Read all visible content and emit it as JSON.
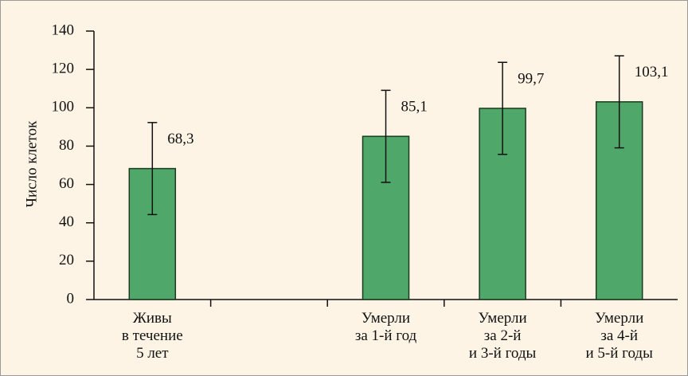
{
  "chart_data": {
    "type": "bar",
    "y_label": "Число клеток",
    "categories": [
      "Живы\nв течение\n5 лет",
      null,
      "Умерли\nза 1-й год",
      "Умерли\nза 2-й\nи 3-й годы",
      "Умерли\nза 4-й\nи 5-й годы"
    ],
    "values": [
      68.3,
      null,
      85.1,
      99.7,
      103.1
    ],
    "value_labels": [
      "68,3",
      null,
      "85,1",
      "99,7",
      "103,1"
    ],
    "errors": [
      24,
      null,
      24,
      24,
      24
    ],
    "color": "#4fa86a",
    "ylim": [
      0,
      140
    ],
    "yticks": [
      0,
      20,
      40,
      60,
      80,
      100,
      120,
      140
    ],
    "grid": false
  }
}
